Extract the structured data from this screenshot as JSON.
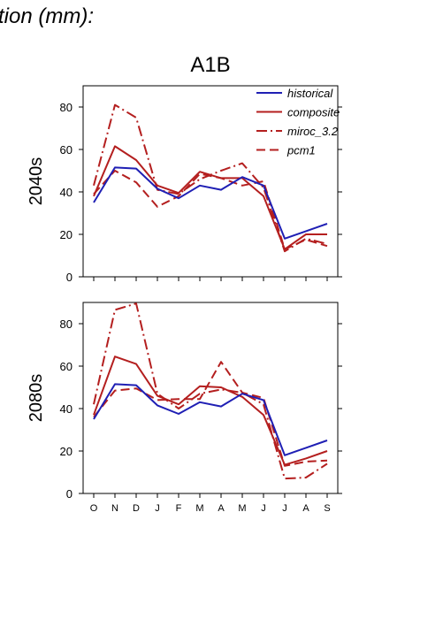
{
  "header": {
    "text": "tion (mm):"
  },
  "scenario": "A1B",
  "chart_data": {
    "type": "line",
    "categories": [
      "O",
      "N",
      "D",
      "J",
      "F",
      "M",
      "A",
      "M",
      "J",
      "J",
      "A",
      "S"
    ],
    "ylim": [
      0,
      90
    ],
    "yticks": [
      "0",
      "20",
      "40",
      "60",
      "80"
    ],
    "legend": {
      "placement": "top-right"
    },
    "series_styles": [
      {
        "name": "historical",
        "color": "#1f1fb4",
        "dash": "solid"
      },
      {
        "name": "composite",
        "color": "#b41f1f",
        "dash": "solid"
      },
      {
        "name": "miroc_3.2",
        "color": "#b41f1f",
        "dash": "dash-dot"
      },
      {
        "name": "pcm1",
        "color": "#b41f1f",
        "dash": "dash"
      }
    ],
    "panels": [
      {
        "label": "2040s",
        "series": [
          {
            "name": "historical",
            "values": [
              35,
              51.5,
              51,
              41.5,
              37,
              43,
              41,
              47,
              43,
              18,
              21.5,
              25
            ]
          },
          {
            "name": "composite",
            "values": [
              38,
              61.5,
              55,
              43,
              39.5,
              49.5,
              46.5,
              46.5,
              38,
              13,
              20,
              20
            ]
          },
          {
            "name": "miroc_3.2",
            "values": [
              43,
              81,
              75,
              41,
              39,
              46,
              50,
              53.5,
              42,
              12,
              18,
              15.5
            ]
          },
          {
            "name": "pcm1",
            "values": [
              39,
              50,
              44.5,
              33,
              38,
              48.5,
              46.5,
              43,
              45,
              13,
              17.5,
              14.5
            ]
          }
        ]
      },
      {
        "label": "2080s",
        "series": [
          {
            "name": "historical",
            "values": [
              35,
              51.5,
              51,
              41.5,
              37.5,
              43,
              41,
              47,
              44,
              18,
              21.5,
              25
            ]
          },
          {
            "name": "composite",
            "values": [
              37,
              64.5,
              61,
              46,
              42,
              50.5,
              50,
              45.5,
              37,
              13.5,
              16.5,
              20
            ]
          },
          {
            "name": "miroc_3.2",
            "values": [
              42,
              86.5,
              89.5,
              47,
              40,
              47,
              49,
              47.5,
              42,
              7,
              7.5,
              14
            ]
          },
          {
            "name": "pcm1",
            "values": [
              36,
              48.5,
              49.5,
              44,
              44.5,
              44.5,
              62,
              47.5,
              45,
              13,
              15,
              15.5
            ]
          }
        ]
      }
    ]
  }
}
